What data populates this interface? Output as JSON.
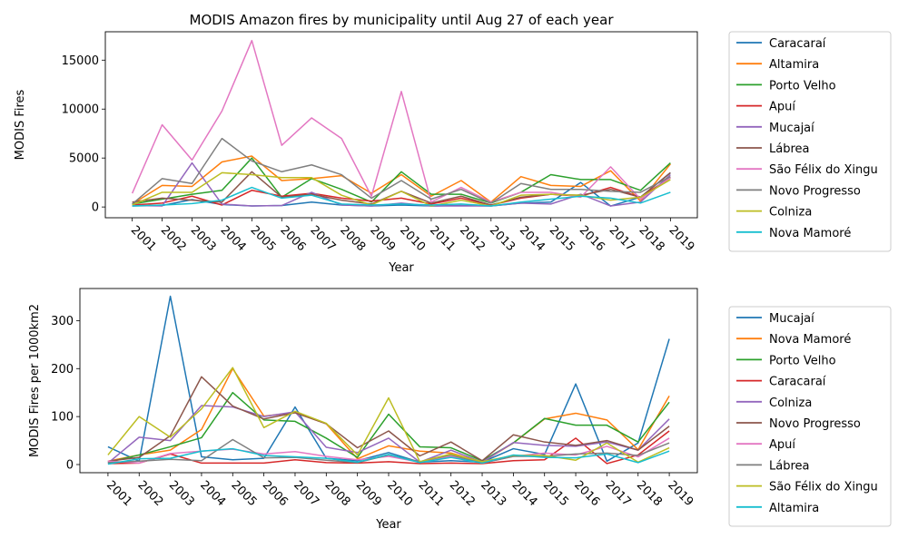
{
  "chart_data": [
    {
      "type": "line",
      "title": "MODIS Amazon fires by municipality until Aug 27 of each year",
      "xlabel": "Year",
      "ylabel": "MODIS Fires",
      "x": [
        "2001",
        "2002",
        "2003",
        "2004",
        "2005",
        "2006",
        "2007",
        "2008",
        "2009",
        "2010",
        "2011",
        "2012",
        "2013",
        "2014",
        "2015",
        "2016",
        "2017",
        "2018",
        "2019"
      ],
      "ylim": [
        -1100,
        17900
      ],
      "yticks": [
        0,
        5000,
        10000,
        15000
      ],
      "grid": false,
      "legend_position": "outside-right-top",
      "series": [
        {
          "name": "Caracaraí",
          "color": "#1f77b4",
          "values": [
            100,
            150,
            750,
            250,
            100,
            150,
            500,
            200,
            100,
            200,
            100,
            150,
            100,
            400,
            500,
            2500,
            100,
            1000,
            3500
          ]
        },
        {
          "name": "Altamira",
          "color": "#ff7f0e",
          "values": [
            300,
            2200,
            2100,
            4600,
            5200,
            2700,
            2900,
            3200,
            1400,
            3300,
            1100,
            2700,
            500,
            3100,
            2200,
            2100,
            3700,
            600,
            4400
          ]
        },
        {
          "name": "Porto Velho",
          "color": "#2ca02c",
          "values": [
            300,
            800,
            1300,
            1700,
            5000,
            1000,
            2900,
            1800,
            500,
            3600,
            1300,
            1300,
            400,
            1500,
            3300,
            2800,
            2800,
            1700,
            4500
          ]
        },
        {
          "name": "Apuí",
          "color": "#d62728",
          "values": [
            200,
            400,
            1100,
            200,
            1700,
            1100,
            1400,
            900,
            600,
            900,
            300,
            900,
            200,
            900,
            1300,
            1100,
            2000,
            1000,
            3000
          ]
        },
        {
          "name": "Mucajaí",
          "color": "#9467bd",
          "values": [
            150,
            100,
            4500,
            300,
            100,
            150,
            1500,
            200,
            100,
            400,
            100,
            100,
            100,
            400,
            300,
            1300,
            100,
            500,
            3300
          ]
        },
        {
          "name": "Lábrea",
          "color": "#8c564b",
          "values": [
            500,
            900,
            700,
            500,
            3600,
            1000,
            1300,
            700,
            300,
            1600,
            400,
            1100,
            200,
            1000,
            1300,
            1200,
            1800,
            1000,
            3500
          ]
        },
        {
          "name": "São Félix do Xingu",
          "color": "#e377c2",
          "values": [
            1400,
            8400,
            4800,
            9800,
            17000,
            6300,
            9100,
            7000,
            1100,
            11800,
            500,
            2000,
            500,
            1500,
            1500,
            1000,
            4100,
            800,
            3000
          ]
        },
        {
          "name": "Novo Progresso",
          "color": "#7f7f7f",
          "values": [
            300,
            2900,
            2400,
            7000,
            4700,
            3600,
            4300,
            3300,
            900,
            2700,
            800,
            1800,
            400,
            2400,
            1800,
            1800,
            1600,
            1500,
            3100
          ]
        },
        {
          "name": "Colniza",
          "color": "#bcbd22",
          "values": [
            200,
            1500,
            1500,
            3500,
            3300,
            3000,
            3000,
            1200,
            200,
            1600,
            100,
            700,
            100,
            1200,
            1300,
            1200,
            700,
            1000,
            2800
          ]
        },
        {
          "name": "Nova Mamoré",
          "color": "#17becf",
          "values": [
            100,
            200,
            350,
            700,
            2000,
            900,
            1200,
            300,
            200,
            300,
            200,
            300,
            100,
            500,
            800,
            1100,
            900,
            400,
            1500
          ]
        }
      ]
    },
    {
      "type": "line",
      "xlabel": "Year",
      "ylabel": "MODIS Fires per 1000km2",
      "x": [
        "2001",
        "2002",
        "2003",
        "2004",
        "2005",
        "2006",
        "2007",
        "2008",
        "2009",
        "2010",
        "2011",
        "2012",
        "2013",
        "2014",
        "2015",
        "2016",
        "2017",
        "2018",
        "2019"
      ],
      "ylim": [
        -17,
        367
      ],
      "yticks": [
        0,
        100,
        200,
        300
      ],
      "grid": false,
      "legend_position": "outside-right-top",
      "series": [
        {
          "name": "Mucajaí",
          "color": "#1f77b4",
          "values": [
            37,
            7,
            351,
            16,
            10,
            13,
            120,
            13,
            8,
            25,
            5,
            8,
            5,
            33,
            21,
            168,
            7,
            45,
            262
          ]
        },
        {
          "name": "Nova Mamoré",
          "color": "#ff7f0e",
          "values": [
            7,
            20,
            30,
            73,
            200,
            101,
            108,
            85,
            12,
            39,
            28,
            24,
            5,
            45,
            95,
            107,
            93,
            31,
            143
          ]
        },
        {
          "name": "Porto Velho",
          "color": "#2ca02c",
          "values": [
            5,
            20,
            37,
            56,
            150,
            93,
            90,
            55,
            15,
            105,
            37,
            35,
            8,
            45,
            96,
            82,
            82,
            47,
            130
          ]
        },
        {
          "name": "Caracaraí",
          "color": "#d62728",
          "values": [
            2,
            3,
            22,
            3,
            3,
            3,
            10,
            4,
            3,
            6,
            2,
            3,
            2,
            8,
            10,
            55,
            2,
            20,
            70
          ]
        },
        {
          "name": "Colniza",
          "color": "#9467bd",
          "values": [
            3,
            57,
            50,
            123,
            120,
            100,
            110,
            36,
            25,
            55,
            5,
            30,
            5,
            46,
            40,
            38,
            47,
            30,
            95
          ]
        },
        {
          "name": "Novo Progresso",
          "color": "#8c564b",
          "values": [
            7,
            15,
            60,
            183,
            122,
            95,
            108,
            85,
            35,
            70,
            18,
            47,
            8,
            62,
            47,
            40,
            50,
            30,
            80
          ]
        },
        {
          "name": "Apuí",
          "color": "#e377c2",
          "values": [
            7,
            3,
            23,
            28,
            32,
            22,
            27,
            17,
            10,
            17,
            5,
            17,
            3,
            17,
            24,
            20,
            38,
            16,
            55
          ]
        },
        {
          "name": "Lábrea",
          "color": "#7f7f7f",
          "values": [
            4,
            7,
            11,
            8,
            52,
            14,
            15,
            9,
            4,
            20,
            6,
            20,
            3,
            17,
            17,
            22,
            24,
            19,
            45
          ]
        },
        {
          "name": "São Félix do Xingu",
          "color": "#bcbd22",
          "values": [
            20,
            100,
            57,
            116,
            202,
            77,
            111,
            86,
            20,
            139,
            6,
            22,
            6,
            19,
            19,
            9,
            45,
            5,
            35
          ]
        },
        {
          "name": "Altamira",
          "color": "#17becf",
          "values": [
            1,
            12,
            13,
            28,
            33,
            19,
            16,
            13,
            5,
            21,
            4,
            15,
            3,
            20,
            15,
            14,
            22,
            4,
            28
          ]
        }
      ]
    }
  ]
}
